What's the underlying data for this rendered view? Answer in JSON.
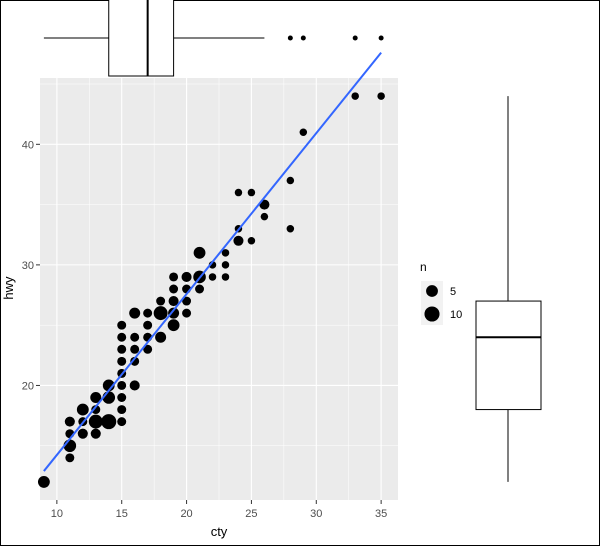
{
  "chart_data": {
    "type": "scatter",
    "xlabel": "cty",
    "ylabel": "hwy",
    "xlim": [
      8.7,
      36.3
    ],
    "ylim": [
      10.5,
      45.5
    ],
    "xticks": [
      10,
      15,
      20,
      25,
      30,
      35
    ],
    "yticks": [
      20,
      30,
      40
    ],
    "colors": {
      "panel": "#ebebeb",
      "grid": "#ffffff",
      "point": "#000000",
      "fit": "#3366ff"
    },
    "fit_line": {
      "x": [
        9,
        35
      ],
      "y": [
        12.9,
        47.6
      ]
    },
    "legend": {
      "title": "n",
      "position": "right",
      "entries": [
        {
          "label": "5",
          "n": 5
        },
        {
          "label": "10",
          "n": 10
        }
      ]
    },
    "points": [
      [
        9,
        12,
        5
      ],
      [
        11,
        14,
        2
      ],
      [
        11,
        15,
        6
      ],
      [
        11,
        16,
        2
      ],
      [
        11,
        17,
        3
      ],
      [
        12,
        16,
        3
      ],
      [
        12,
        17,
        2
      ],
      [
        12,
        18,
        5
      ],
      [
        13,
        16,
        3
      ],
      [
        13,
        17,
        8
      ],
      [
        13,
        18,
        2
      ],
      [
        13,
        19,
        4
      ],
      [
        14,
        17,
        10
      ],
      [
        14,
        19,
        6
      ],
      [
        14,
        20,
        5
      ],
      [
        15,
        17,
        2
      ],
      [
        15,
        18,
        2
      ],
      [
        15,
        19,
        2
      ],
      [
        15,
        20,
        2
      ],
      [
        15,
        21,
        2
      ],
      [
        15,
        22,
        2
      ],
      [
        15,
        23,
        2
      ],
      [
        15,
        24,
        2
      ],
      [
        15,
        25,
        2
      ],
      [
        16,
        20,
        3
      ],
      [
        16,
        22,
        2
      ],
      [
        16,
        23,
        2
      ],
      [
        16,
        24,
        2
      ],
      [
        16,
        26,
        4
      ],
      [
        17,
        23,
        2
      ],
      [
        17,
        24,
        2
      ],
      [
        17,
        25,
        2
      ],
      [
        17,
        26,
        2
      ],
      [
        18,
        24,
        4
      ],
      [
        18,
        26,
        8
      ],
      [
        18,
        27,
        2
      ],
      [
        19,
        25,
        5
      ],
      [
        19,
        26,
        4
      ],
      [
        19,
        27,
        3
      ],
      [
        19,
        28,
        2
      ],
      [
        19,
        29,
        2
      ],
      [
        20,
        26,
        2
      ],
      [
        20,
        27,
        2
      ],
      [
        20,
        28,
        2
      ],
      [
        20,
        29,
        3
      ],
      [
        21,
        28,
        2
      ],
      [
        21,
        29,
        6
      ],
      [
        21,
        31,
        5
      ],
      [
        22,
        29,
        1
      ],
      [
        22,
        30,
        1
      ],
      [
        23,
        29,
        1
      ],
      [
        23,
        30,
        1
      ],
      [
        23,
        31,
        1
      ],
      [
        24,
        32,
        3
      ],
      [
        24,
        33,
        1
      ],
      [
        24,
        36,
        1
      ],
      [
        25,
        32,
        1
      ],
      [
        25,
        36,
        1
      ],
      [
        26,
        34,
        1
      ],
      [
        26,
        35,
        3
      ],
      [
        28,
        33,
        1
      ],
      [
        28,
        37,
        1
      ],
      [
        29,
        41,
        1
      ],
      [
        33,
        44,
        1
      ],
      [
        35,
        44,
        1
      ]
    ],
    "boxplot_cty": {
      "lower_whisker": 9,
      "q1": 14,
      "median": 17,
      "q3": 19,
      "upper_whisker": 26,
      "outliers": [
        28,
        28,
        29,
        33,
        35
      ]
    },
    "boxplot_hwy": {
      "lower_whisker": 12,
      "q1": 18,
      "median": 24,
      "q3": 27,
      "upper_whisker": 44,
      "outliers": []
    }
  }
}
